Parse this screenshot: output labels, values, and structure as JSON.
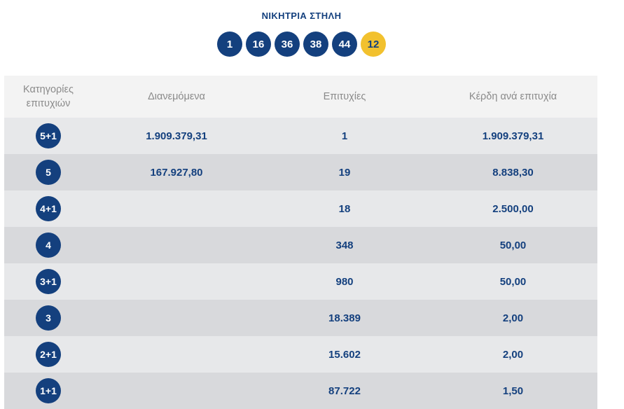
{
  "header": {
    "title": "ΝΙΚΗΤΡΙΑ ΣΤΗΛΗ"
  },
  "winning": {
    "numbers": [
      "1",
      "16",
      "36",
      "38",
      "44"
    ],
    "bonus": "12",
    "colors": {
      "ball": "#14407e",
      "bonus": "#f2c12e"
    }
  },
  "table": {
    "headers": {
      "category_line1": "Κατηγορίες",
      "category_line2": "επιτυχιών",
      "distributed": "Διανεμόμενα",
      "winners": "Επιτυχίες",
      "prize": "Κέρδη ανά επιτυχία"
    },
    "rows": [
      {
        "category": "5+1",
        "distributed": "1.909.379,31",
        "winners": "1",
        "prize": "1.909.379,31"
      },
      {
        "category": "5",
        "distributed": "167.927,80",
        "winners": "19",
        "prize": "8.838,30"
      },
      {
        "category": "4+1",
        "distributed": "",
        "winners": "18",
        "prize": "2.500,00"
      },
      {
        "category": "4",
        "distributed": "",
        "winners": "348",
        "prize": "50,00"
      },
      {
        "category": "3+1",
        "distributed": "",
        "winners": "980",
        "prize": "50,00"
      },
      {
        "category": "3",
        "distributed": "",
        "winners": "18.389",
        "prize": "2,00"
      },
      {
        "category": "2+1",
        "distributed": "",
        "winners": "15.602",
        "prize": "2,00"
      },
      {
        "category": "1+1",
        "distributed": "",
        "winners": "87.722",
        "prize": "1,50"
      }
    ]
  }
}
